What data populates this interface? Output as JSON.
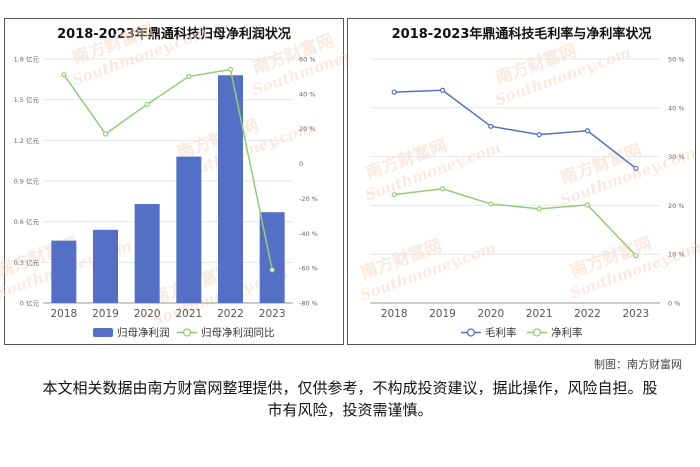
{
  "chart_data": [
    {
      "type": "bar",
      "title": "2018-2023年鼎通科技归母净利润状况",
      "categories": [
        "2018",
        "2019",
        "2020",
        "2021",
        "2022",
        "2023"
      ],
      "y_ticks": [
        "0 亿元",
        "0.3 亿元",
        "0.6 亿元",
        "0.9 亿元",
        "1.2 亿元",
        "1.5 亿元",
        "1.8 亿元"
      ],
      "y2_ticks": [
        "-80 %",
        "-60 %",
        "-40 %",
        "-20 %",
        "0",
        "20 %",
        "40 %",
        "60 %"
      ],
      "ylim": [
        0,
        1.8
      ],
      "y2lim": [
        -80,
        60
      ],
      "series": [
        {
          "name": "归母净利润",
          "type": "bar",
          "axis": "left",
          "color": "#5470c6",
          "values": [
            0.46,
            0.54,
            0.73,
            1.08,
            1.68,
            0.67
          ]
        },
        {
          "name": "归母净利润同比",
          "type": "line",
          "axis": "right",
          "color": "#91cc75",
          "values": [
            51,
            17,
            34,
            50,
            54,
            -61
          ]
        }
      ],
      "legend_position": "bottom"
    },
    {
      "type": "line",
      "title": "2018-2023年鼎通科技毛利率与净利率状况",
      "categories": [
        "2018",
        "2019",
        "2020",
        "2021",
        "2022",
        "2023"
      ],
      "y_ticks": [
        "0 %",
        "10 %",
        "20 %",
        "30 %",
        "40 %",
        "50 %"
      ],
      "ylim": [
        0,
        50
      ],
      "series": [
        {
          "name": "毛利率",
          "color": "#5470c6",
          "values": [
            43.2,
            43.6,
            36.2,
            34.5,
            35.3,
            27.6
          ]
        },
        {
          "name": "净利率",
          "color": "#91cc75",
          "values": [
            22.2,
            23.4,
            20.3,
            19.3,
            20.1,
            9.7
          ]
        }
      ],
      "legend_position": "bottom"
    }
  ],
  "watermark": {
    "cn": "南方财富网",
    "en": "Southmoney.com"
  },
  "credit": "制图：南方财富网",
  "disclaimer": "本文相关数据由南方财富网整理提供，仅供参考，不构成投资建议，据此操作，风险自担。股市有风险，投资需谨慎。"
}
